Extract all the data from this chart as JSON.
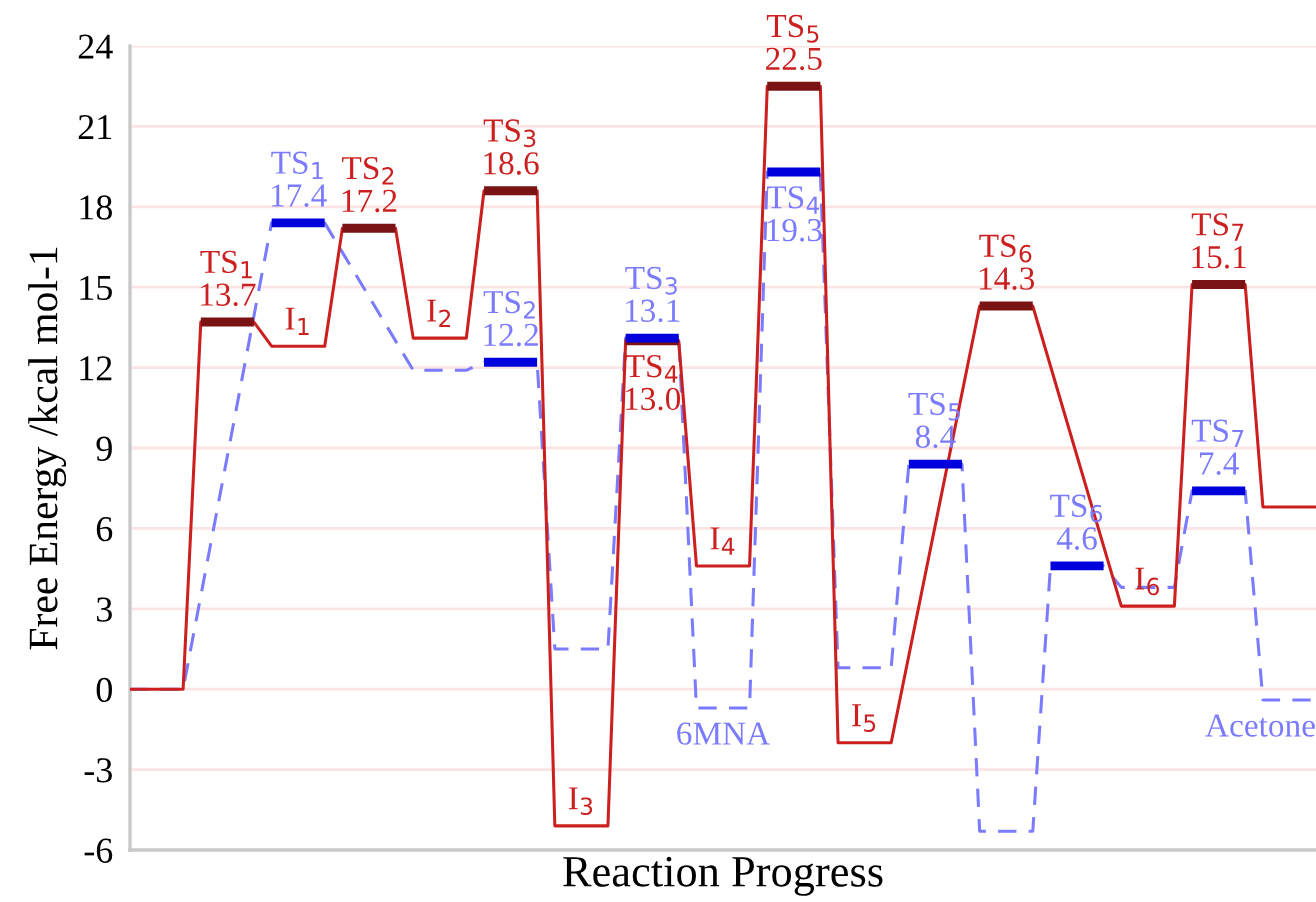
{
  "chart_data": {
    "type": "line",
    "xlabel": "Reaction Progress",
    "ylabel": "Free Energy /kcal mol-1",
    "categories": [
      null,
      null,
      null,
      null,
      null,
      null,
      null,
      null,
      null,
      null,
      null,
      null,
      null,
      null,
      null,
      null,
      null,
      null,
      null,
      null,
      null,
      null,
      null,
      null,
      null,
      null,
      null,
      null,
      null,
      null,
      null,
      null,
      null,
      null,
      null,
      null,
      null,
      null,
      null,
      null,
      null,
      null,
      null,
      null,
      null,
      null,
      null,
      null,
      null,
      null,
      null,
      null,
      null,
      null,
      null,
      null,
      null,
      null,
      null,
      null,
      null,
      null,
      null,
      null,
      null,
      null,
      null,
      null
    ],
    "ylim": [
      -6,
      24
    ],
    "yticks": [
      -6,
      -3,
      0,
      3,
      6,
      9,
      12,
      15,
      18,
      21,
      24
    ],
    "grid": "y",
    "legend": false,
    "tick_labels": "y",
    "series": [
      {
        "color": "#cc2020",
        "line_style": "solid",
        "values": [
          0,
          0,
          0,
          0,
          13.7,
          13.7,
          13.7,
          13.7,
          12.8,
          12.8,
          12.8,
          12.8,
          17.2,
          17.2,
          17.2,
          17.2,
          13.1,
          13.1,
          13.1,
          13.1,
          18.6,
          18.6,
          18.6,
          18.6,
          -5.1,
          -5.1,
          -5.1,
          -5.1,
          13.0,
          13.0,
          13.0,
          13.0,
          4.6,
          4.6,
          4.6,
          4.6,
          22.5,
          22.5,
          22.5,
          22.5,
          -2.0,
          -2.0,
          -2.0,
          -2.0,
          null,
          null,
          null,
          null,
          14.3,
          14.3,
          14.3,
          14.3,
          null,
          null,
          null,
          null,
          3.1,
          3.1,
          3.1,
          3.1,
          15.1,
          15.1,
          15.1,
          15.1,
          6.8,
          6.8,
          6.8,
          6.8
        ],
        "value_labels": [
          null,
          null,
          null,
          null,
          "TS$_{1}$\n13.7",
          null,
          null,
          null,
          null,
          null,
          null,
          null,
          "TS$_{2}$\n17.2",
          null,
          null,
          null,
          null,
          null,
          null,
          null,
          "TS$_{3}$\n18.6",
          null,
          null,
          null,
          null,
          null,
          null,
          null,
          "TS$_{4}$\n13.0",
          null,
          null,
          null,
          null,
          null,
          null,
          null,
          "TS$_{5}$\n22.5",
          null,
          null,
          null,
          null,
          null,
          null,
          null,
          null,
          null,
          null,
          null,
          "TS$_{6}$\n14.3",
          null,
          null,
          null,
          null,
          null,
          null,
          null,
          null,
          null,
          null,
          null,
          "TS$_{7}$\n15.1",
          null,
          null,
          null,
          null,
          null,
          null,
          null
        ]
      },
      {
        "color": "#7b7bff",
        "line_style": "dashed",
        "values": [
          0,
          0,
          0,
          0,
          null,
          null,
          null,
          null,
          17.4,
          17.4,
          17.4,
          17.4,
          null,
          null,
          null,
          null,
          11.9,
          11.9,
          11.9,
          11.9,
          12.2,
          12.2,
          12.2,
          12.2,
          1.5,
          1.5,
          1.5,
          1.5,
          13.1,
          13.1,
          13.1,
          13.1,
          -0.7,
          -0.7,
          -0.7,
          -0.7,
          19.3,
          19.3,
          19.3,
          19.3,
          0.8,
          0.8,
          0.8,
          0.8,
          8.4,
          8.4,
          8.4,
          8.4,
          -5.3,
          -5.3,
          -5.3,
          -5.3,
          4.6,
          4.6,
          4.6,
          4.6,
          3.8,
          3.8,
          3.8,
          3.8,
          7.4,
          7.4,
          7.4,
          7.4,
          -0.4,
          -0.4,
          -0.4,
          -0.4
        ],
        "value_labels": [
          null,
          null,
          null,
          null,
          null,
          null,
          null,
          null,
          "TS$_{1}$\n17.4",
          null,
          null,
          null,
          null,
          null,
          null,
          null,
          null,
          null,
          null,
          null,
          "TS$_{2}$\n12.2",
          null,
          null,
          null,
          null,
          null,
          null,
          null,
          "TS$_{3}$\n13.1",
          null,
          null,
          null,
          null,
          null,
          null,
          null,
          "TS$_{4}$\n19.3",
          null,
          null,
          null,
          null,
          null,
          null,
          null,
          "TS$_{5}$\n8.4",
          null,
          null,
          null,
          null,
          null,
          null,
          null,
          "TS$_{6}$\n4.6",
          null,
          null,
          null,
          null,
          null,
          null,
          null,
          "TS$_{7}$\n7.4",
          null,
          null,
          null,
          null,
          null,
          null,
          null
        ]
      }
    ],
    "annotations": [
      {
        "text": "I$_{1}$",
        "y": 12.8
      },
      {
        "text": "I$_{2}$",
        "y": 13.1
      },
      {
        "text": "I$_{3}$",
        "y": -5.1
      },
      {
        "text": "I$_{4}$",
        "y": 4.6
      },
      {
        "text": "I$_{5}$",
        "y": -2.0
      },
      {
        "text": "I$_{6}$",
        "y": 3.1
      },
      {
        "text": "6MNA",
        "y": -0.7
      },
      {
        "text": "Acetone",
        "y": -0.4
      }
    ]
  }
}
